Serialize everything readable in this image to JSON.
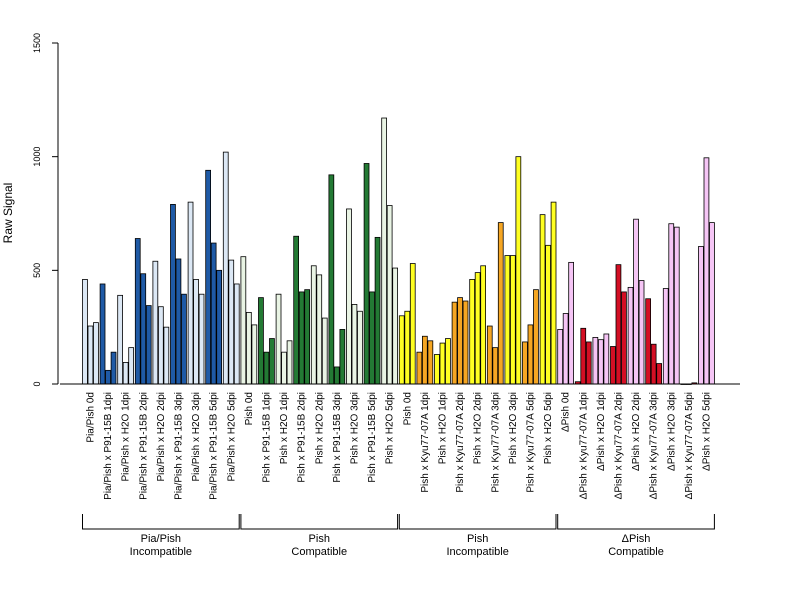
{
  "colors": {
    "light_blue": "#dce8f5",
    "dark_blue": "#1f5aa6",
    "light_green": "#e9f4e4",
    "dark_green": "#237a34",
    "yellow": "#ffff22",
    "orange": "#f5a623",
    "light_pink": "#f5c5f5",
    "red": "#d40f24",
    "bar_stroke": "#000000"
  },
  "chart_data": {
    "type": "bar",
    "title": "",
    "xlabel": "",
    "ylabel": "Raw Signal",
    "ylim": [
      0,
      1500
    ],
    "yticks": [
      0,
      500,
      1000,
      1500
    ],
    "grid": false,
    "legend": "none",
    "bars_per_category": 3,
    "categories": [
      "Pia/Pish 0d",
      "Pia/Pish x P91-15B 1dpi",
      "Pia/Pish x H2O 1dpi",
      "Pia/Pish x P91-15B 2dpi",
      "Pia/Pish x H2O 2dpi",
      "Pia/Pish x P91-15B 3dpi",
      "Pia/Pish x H2O 3dpi",
      "Pia/Pish x P91-15B 5dpi",
      "Pia/Pish x H2O 5dpi",
      "Pish 0d",
      "Pish x P91-15B 1dpi",
      "Pish x H2O 1dpi",
      "Pish x P91-15B 2dpi",
      "Pish x H2O 2dpi",
      "Pish x P91-15B 3dpi",
      "Pish x H2O 3dpi",
      "Pish x P91-15B 5dpi",
      "Pish x H2O 5dpi",
      "Pish 0d",
      "Pish x Kyu77-07A 1dpi",
      "Pish x H2O 1dpi",
      "Pish x Kyu77-07A 2dpi",
      "Pish x H2O 2dpi",
      "Pish x Kyu77-07A 3dpi",
      "Pish x H2O 3dpi",
      "Pish x Kyu77-07A 5dpi",
      "Pish x H2O 5dpi",
      "ΔPish 0d",
      "ΔPish x Kyu77-07A 1dpi",
      "ΔPish x H2O 1dpi",
      "ΔPish x Kyu77-07A 2dpi",
      "ΔPish x H2O 2dpi",
      "ΔPish x Kyu77-07A 3dpi",
      "ΔPish x H2O 3dpi",
      "ΔPish x Kyu77-07A 5dpi",
      "ΔPish x H2O 5dpi"
    ],
    "values": [
      [
        460,
        255,
        270
      ],
      [
        440,
        60,
        140
      ],
      [
        390,
        95,
        160
      ],
      [
        640,
        485,
        345
      ],
      [
        540,
        340,
        250
      ],
      [
        790,
        550,
        395
      ],
      [
        800,
        460,
        395
      ],
      [
        940,
        620,
        500
      ],
      [
        1020,
        545,
        440
      ],
      [
        560,
        315,
        260
      ],
      [
        380,
        140,
        200
      ],
      [
        395,
        140,
        190
      ],
      [
        650,
        405,
        415
      ],
      [
        520,
        480,
        290
      ],
      [
        920,
        75,
        240
      ],
      [
        770,
        350,
        320
      ],
      [
        970,
        405,
        645
      ],
      [
        1170,
        785,
        510
      ],
      [
        300,
        320,
        530
      ],
      [
        140,
        210,
        190
      ],
      [
        130,
        180,
        200
      ],
      [
        360,
        380,
        365
      ],
      [
        460,
        490,
        520
      ],
      [
        255,
        160,
        710
      ],
      [
        565,
        565,
        1000
      ],
      [
        185,
        260,
        415
      ],
      [
        745,
        610,
        800
      ],
      [
        240,
        310,
        535
      ],
      [
        10,
        245,
        185
      ],
      [
        205,
        195,
        220
      ],
      [
        165,
        525,
        405
      ],
      [
        425,
        725,
        455
      ],
      [
        375,
        175,
        90
      ],
      [
        420,
        705,
        690
      ],
      [
        0,
        0,
        5
      ],
      [
        605,
        995,
        710
      ]
    ],
    "category_colors": [
      "light_blue",
      "dark_blue",
      "light_blue",
      "dark_blue",
      "light_blue",
      "dark_blue",
      "light_blue",
      "dark_blue",
      "light_blue",
      "light_green",
      "dark_green",
      "light_green",
      "dark_green",
      "light_green",
      "dark_green",
      "light_green",
      "dark_green",
      "light_green",
      "yellow",
      "orange",
      "yellow",
      "orange",
      "yellow",
      "orange",
      "yellow",
      "orange",
      "yellow",
      "light_pink",
      "red",
      "light_pink",
      "red",
      "light_pink",
      "red",
      "light_pink",
      "red",
      "light_pink"
    ],
    "groups": [
      {
        "line1": "Pia/Pish",
        "line2": "Incompatible",
        "start": 0,
        "end": 8
      },
      {
        "line1": "Pish",
        "line2": "Compatible",
        "start": 9,
        "end": 17
      },
      {
        "line1": "Pish",
        "line2": "Incompatible",
        "start": 18,
        "end": 26
      },
      {
        "line1": "ΔPish",
        "line2": "Compatible",
        "start": 27,
        "end": 35
      }
    ]
  }
}
